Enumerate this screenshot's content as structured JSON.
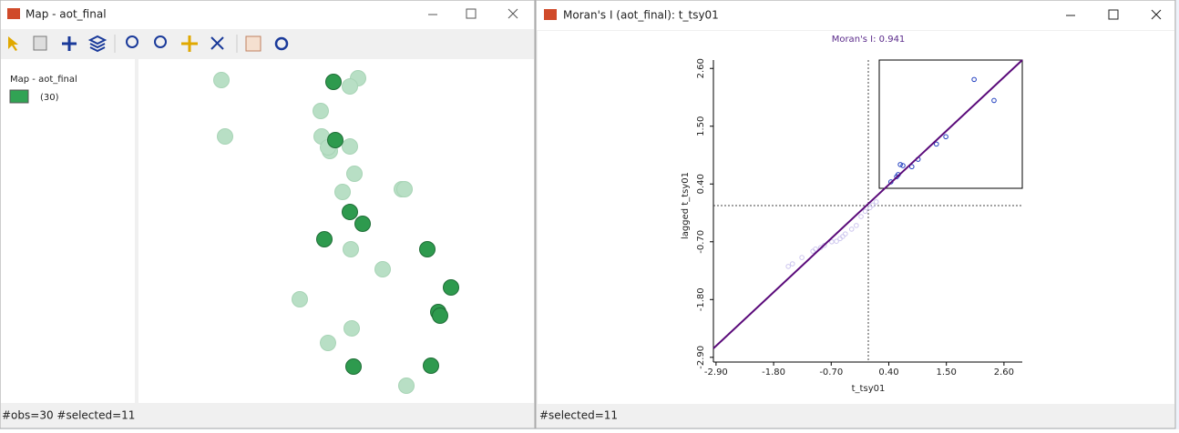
{
  "map_window": {
    "title": "Map - aot_final",
    "legend_title": "Map - aot_final",
    "legend_count": "(30)",
    "status": "#obs=30 #selected=11"
  },
  "moran_window": {
    "title": "Moran's I (aot_final): t_tsy01",
    "status": "#selected=11"
  },
  "chart_data": {
    "type": "scatter",
    "title": "Moran's I: 0.941",
    "x_label": "t_tsy01",
    "y_label": "lagged t_tsy01",
    "xlim": [
      -2.95,
      2.95
    ],
    "ylim": [
      -2.99,
      2.76
    ],
    "xticks": [
      {
        "value": -2.9,
        "label": "-2.90"
      },
      {
        "value": -1.8,
        "label": "-1.80"
      },
      {
        "value": -0.7,
        "label": "-0.70"
      },
      {
        "value": 0.4,
        "label": "0.40"
      },
      {
        "value": 1.5,
        "label": "1.50"
      },
      {
        "value": 2.6,
        "label": "2.60"
      }
    ],
    "yticks": [
      {
        "value": -2.9,
        "label": "-2.90"
      },
      {
        "value": -1.8,
        "label": "-1.80"
      },
      {
        "value": -0.7,
        "label": "-0.70"
      },
      {
        "value": 0.4,
        "label": "0.40"
      },
      {
        "value": 1.5,
        "label": "1.50"
      },
      {
        "value": 2.6,
        "label": "2.60"
      }
    ],
    "series": [
      {
        "color": "#cdc6ee",
        "x": [
          -1.52,
          -1.44,
          -1.26,
          -1.05,
          -1.0,
          -0.9,
          -0.83,
          -0.69,
          -0.6,
          -0.53,
          -0.48,
          -0.43,
          -0.31,
          -0.22,
          -0.13,
          -0.05,
          0.04,
          0.09,
          0.16
        ],
        "y": [
          -1.17,
          -1.12,
          -1.0,
          -0.88,
          -0.84,
          -0.81,
          -0.77,
          -0.7,
          -0.69,
          -0.64,
          -0.6,
          -0.55,
          -0.46,
          -0.39,
          -0.22,
          -0.12,
          -0.05,
          0.0,
          0.06
        ]
      },
      {
        "color": "#2340c0",
        "x": [
          2.03,
          2.41,
          1.49,
          1.31,
          0.96,
          0.84,
          0.62,
          0.67,
          0.58,
          0.55,
          0.44
        ],
        "y": [
          2.39,
          1.99,
          1.3,
          1.16,
          0.87,
          0.73,
          0.77,
          0.75,
          0.58,
          0.54,
          0.44
        ]
      }
    ]
  }
}
